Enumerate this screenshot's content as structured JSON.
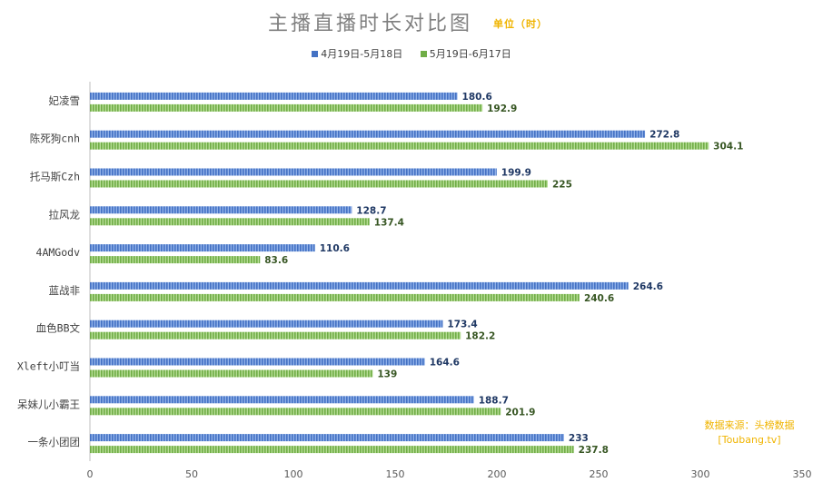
{
  "chart_data": {
    "type": "bar",
    "orientation": "horizontal",
    "title": "主播直播时长对比图",
    "subtitle": "单位（时）",
    "categories": [
      "妃凌雪",
      "陈死狗cnh",
      "托马斯Czh",
      "拉风龙",
      "4AMGodv",
      "蓝战非",
      "血色BB文",
      "Xleft小叮当",
      "呆妹儿小霸王",
      "一条小团团"
    ],
    "series": [
      {
        "name": "4月19日-5月18日",
        "color": "#4472c4",
        "values": [
          180.6,
          272.8,
          199.9,
          128.7,
          110.6,
          264.6,
          173.4,
          164.6,
          188.7,
          233
        ],
        "label_color": "#1f3864"
      },
      {
        "name": "5月19日-6月17日",
        "color": "#70ad47",
        "values": [
          192.9,
          304.1,
          225,
          137.4,
          83.6,
          240.6,
          182.2,
          139,
          201.9,
          237.8
        ],
        "label_color": "#375623"
      }
    ],
    "xlim": [
      0,
      350
    ],
    "xticks": [
      0,
      50,
      100,
      150,
      200,
      250,
      300,
      350
    ],
    "grid": false,
    "legend_position": "top",
    "annotation": [
      "数据来源：头榜数据",
      "[Toubang.tv]"
    ]
  }
}
